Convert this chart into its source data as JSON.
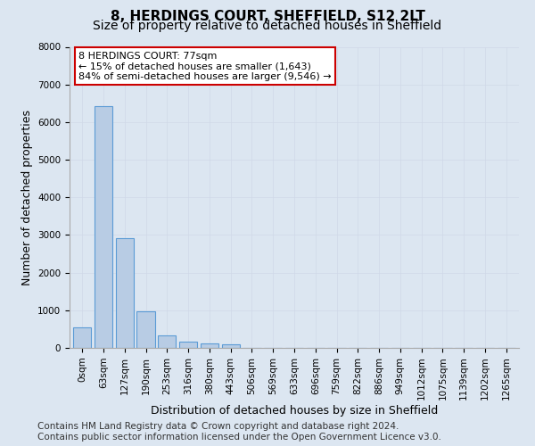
{
  "title": "8, HERDINGS COURT, SHEFFIELD, S12 2LT",
  "subtitle": "Size of property relative to detached houses in Sheffield",
  "xlabel": "Distribution of detached houses by size in Sheffield",
  "ylabel": "Number of detached properties",
  "bar_labels": [
    "0sqm",
    "63sqm",
    "127sqm",
    "190sqm",
    "253sqm",
    "316sqm",
    "380sqm",
    "443sqm",
    "506sqm",
    "569sqm",
    "633sqm",
    "696sqm",
    "759sqm",
    "822sqm",
    "886sqm",
    "949sqm",
    "1012sqm",
    "1075sqm",
    "1139sqm",
    "1202sqm",
    "1265sqm"
  ],
  "bar_values": [
    550,
    6430,
    2920,
    970,
    330,
    160,
    120,
    85,
    0,
    0,
    0,
    0,
    0,
    0,
    0,
    0,
    0,
    0,
    0,
    0,
    0
  ],
  "bar_color": "#b8cce4",
  "bar_edge_color": "#5b9bd5",
  "ylim": [
    0,
    8000
  ],
  "yticks": [
    0,
    1000,
    2000,
    3000,
    4000,
    5000,
    6000,
    7000,
    8000
  ],
  "annotation_text": "8 HERDINGS COURT: 77sqm\n← 15% of detached houses are smaller (1,643)\n84% of semi-detached houses are larger (9,546) →",
  "annotation_box_color": "#ffffff",
  "annotation_border_color": "#cc0000",
  "footer_text": "Contains HM Land Registry data © Crown copyright and database right 2024.\nContains public sector information licensed under the Open Government Licence v3.0.",
  "grid_color": "#d0d8e8",
  "bg_color": "#dce6f1",
  "plot_bg_color": "#dce6f1",
  "title_fontsize": 11,
  "subtitle_fontsize": 10,
  "axis_label_fontsize": 9,
  "tick_fontsize": 7.5,
  "annotation_fontsize": 8,
  "footer_fontsize": 7.5
}
